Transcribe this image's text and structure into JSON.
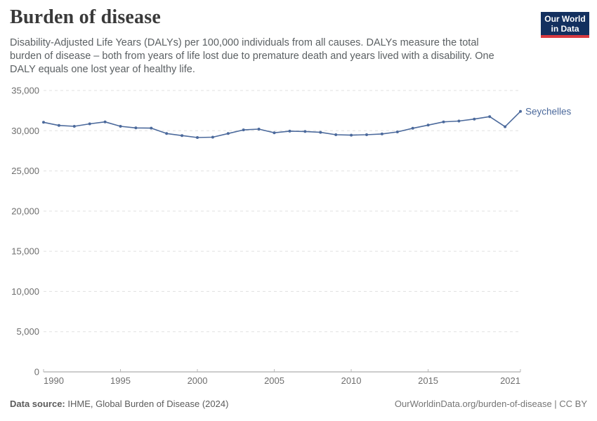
{
  "header": {
    "title": "Burden of disease",
    "subtitle_lines": [
      "Disability-Adjusted Life Years (DALYs) per 100,000 individuals from all causes. DALYs measure the total",
      "burden of disease – both from years of life lost due to premature death and years lived with a disability. One",
      "DALY equals one lost year of healthy life."
    ],
    "logo": {
      "line1": "Our World",
      "line2": "in Data",
      "bg_color": "#13305f",
      "accent_color": "#d93a40"
    }
  },
  "chart_data": {
    "type": "line",
    "title": "Burden of disease",
    "xlabel": "",
    "ylabel": "DALYs per 100,000 individuals",
    "xlim": [
      1990,
      2021
    ],
    "ylim": [
      0,
      35000
    ],
    "grid": "horizontal-dashed",
    "legend": "end-of-line-label",
    "x_ticks": [
      1990,
      1995,
      2000,
      2005,
      2010,
      2015,
      2021
    ],
    "y_ticks": [
      0,
      5000,
      10000,
      15000,
      20000,
      25000,
      30000,
      35000
    ],
    "x": [
      1990,
      1991,
      1992,
      1993,
      1994,
      1995,
      1996,
      1997,
      1998,
      1999,
      2000,
      2001,
      2002,
      2003,
      2004,
      2005,
      2006,
      2007,
      2008,
      2009,
      2010,
      2011,
      2012,
      2013,
      2014,
      2015,
      2016,
      2017,
      2018,
      2019,
      2020,
      2021
    ],
    "series": [
      {
        "name": "Seychelles",
        "color": "#4c6a9c",
        "values": [
          31050,
          30650,
          30550,
          30850,
          31100,
          30550,
          30350,
          30320,
          29650,
          29400,
          29150,
          29200,
          29650,
          30100,
          30200,
          29750,
          29950,
          29900,
          29800,
          29500,
          29450,
          29500,
          29600,
          29850,
          30300,
          30700,
          31100,
          31200,
          31450,
          31750,
          30500,
          32400
        ]
      }
    ],
    "colors": {
      "gridline": "#e0e0e0",
      "axis_line": "#9a9a9a",
      "tick_mark": "#b9b9b9",
      "tick_label": "#6e6e6e"
    }
  },
  "footer": {
    "source_label": "Data source:",
    "source_text": " IHME, Global Burden of Disease (2024)",
    "credit": "OurWorldinData.org/burden-of-disease | CC BY"
  }
}
